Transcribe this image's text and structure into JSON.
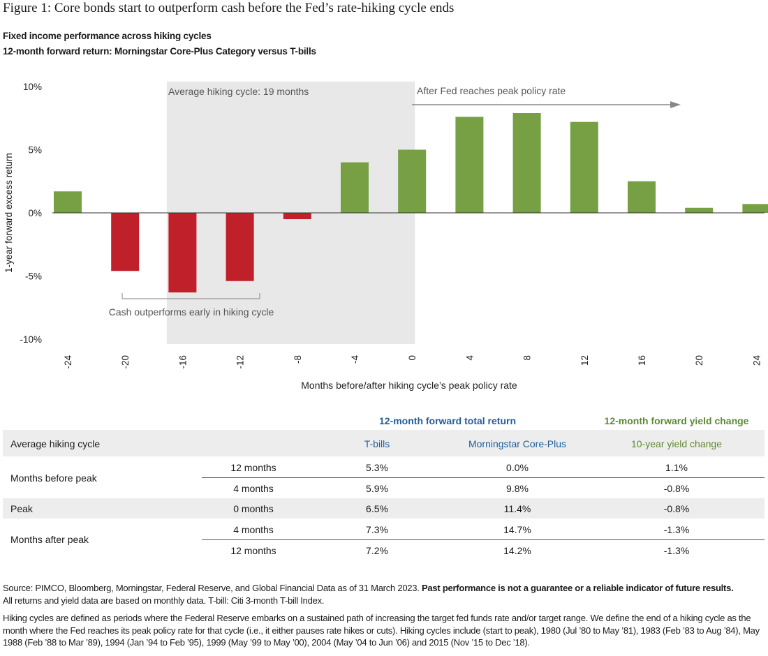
{
  "title": "Figure 1: Core bonds start to outperform cash before the Fed’s rate-hiking cycle ends",
  "subtitle1": "Fixed income performance across hiking cycles",
  "subtitle2": "12-month forward return: Morningstar Core-Plus Category versus T-bills",
  "colors": {
    "positive": "#76a043",
    "negative": "#c0202a",
    "shade": "#e8e8e8",
    "blue": "#1f5e9c",
    "green": "#5e8a32"
  },
  "chart_data": {
    "type": "bar",
    "x": [
      -24,
      -20,
      -16,
      -12,
      -8,
      -4,
      0,
      4,
      8,
      12,
      16,
      20,
      24
    ],
    "xtick_labels": [
      "-24",
      "-20",
      "-16",
      "-12",
      "-8",
      "-4",
      "0",
      "4",
      "8",
      "12",
      "16",
      "20",
      "24"
    ],
    "values": [
      1.7,
      -4.6,
      -6.3,
      -5.4,
      -0.5,
      4.0,
      5.0,
      7.6,
      7.9,
      7.2,
      2.5,
      0.4,
      0.7
    ],
    "ylim": [
      -10,
      10
    ],
    "ytick_labels": [
      "10%",
      "5%",
      "0%",
      "-5%",
      "-10%"
    ],
    "ytick_values": [
      10,
      5,
      0,
      -5,
      -10
    ],
    "ylabel": "1-year forward excess return",
    "xlabel": "Months before/after hiking cycle’s peak policy rate",
    "shaded_region": [
      -17,
      0
    ],
    "annotations": {
      "shade_label": "Average hiking cycle: 19 months",
      "arrow_label": "After Fed reaches peak policy rate",
      "bracket_label": "Cash outperforms early in hiking cycle"
    }
  },
  "table": {
    "group_total": "12-month forward total return",
    "group_yield": "12-month forward yield change",
    "col_cycle": "Average hiking cycle",
    "col_tbills": "T-bills",
    "col_core": "Morningstar Core-Plus",
    "col_yield": "10-year yield change",
    "rows": [
      {
        "group": "Months before peak",
        "period": "12 months",
        "tbills": "5.3%",
        "core": "0.0%",
        "yield": "1.1%"
      },
      {
        "group": "",
        "period": "4 months",
        "tbills": "5.9%",
        "core": "9.8%",
        "yield": "-0.8%"
      },
      {
        "group": "Peak",
        "period": "0 months",
        "tbills": "6.5%",
        "core": "11.4%",
        "yield": "-0.8%"
      },
      {
        "group": "Months after peak",
        "period": "4 months",
        "tbills": "7.3%",
        "core": "14.7%",
        "yield": "-1.3%"
      },
      {
        "group": "",
        "period": "12 months",
        "tbills": "7.2%",
        "core": "14.2%",
        "yield": "-1.3%"
      }
    ]
  },
  "footnotes": {
    "source": "Source: PIMCO, Bloomberg, Morningstar, Federal Reserve, and Global Financial Data as of 31 March 2023. ",
    "disclaimer": "Past performance is not a guarantee or a reliable indicator of future results.",
    "line2": "All returns and yield data are based on monthly data. T-bill: Citi 3-month T-bill Index.",
    "definition": "Hiking cycles are defined as periods where the Federal Reserve embarks on a sustained path of increasing the target fed funds rate and/or target range. We define the end of a hiking cycle as the month where the Fed reaches its peak policy rate for that cycle (i.e., it either pauses rate hikes or cuts). Hiking cycles include (start to peak), 1980 (Jul ’80 to May ’81), 1983 (Feb ’83 to Aug ’84), May 1988 (Feb ’88 to Mar ’89), 1994 (Jan ’94 to Feb ’95), 1999 (May ’99 to May ’00), 2004 (May ’04 to Jun ’06) and 2015 (Nov ’15 to Dec ’18)."
  }
}
